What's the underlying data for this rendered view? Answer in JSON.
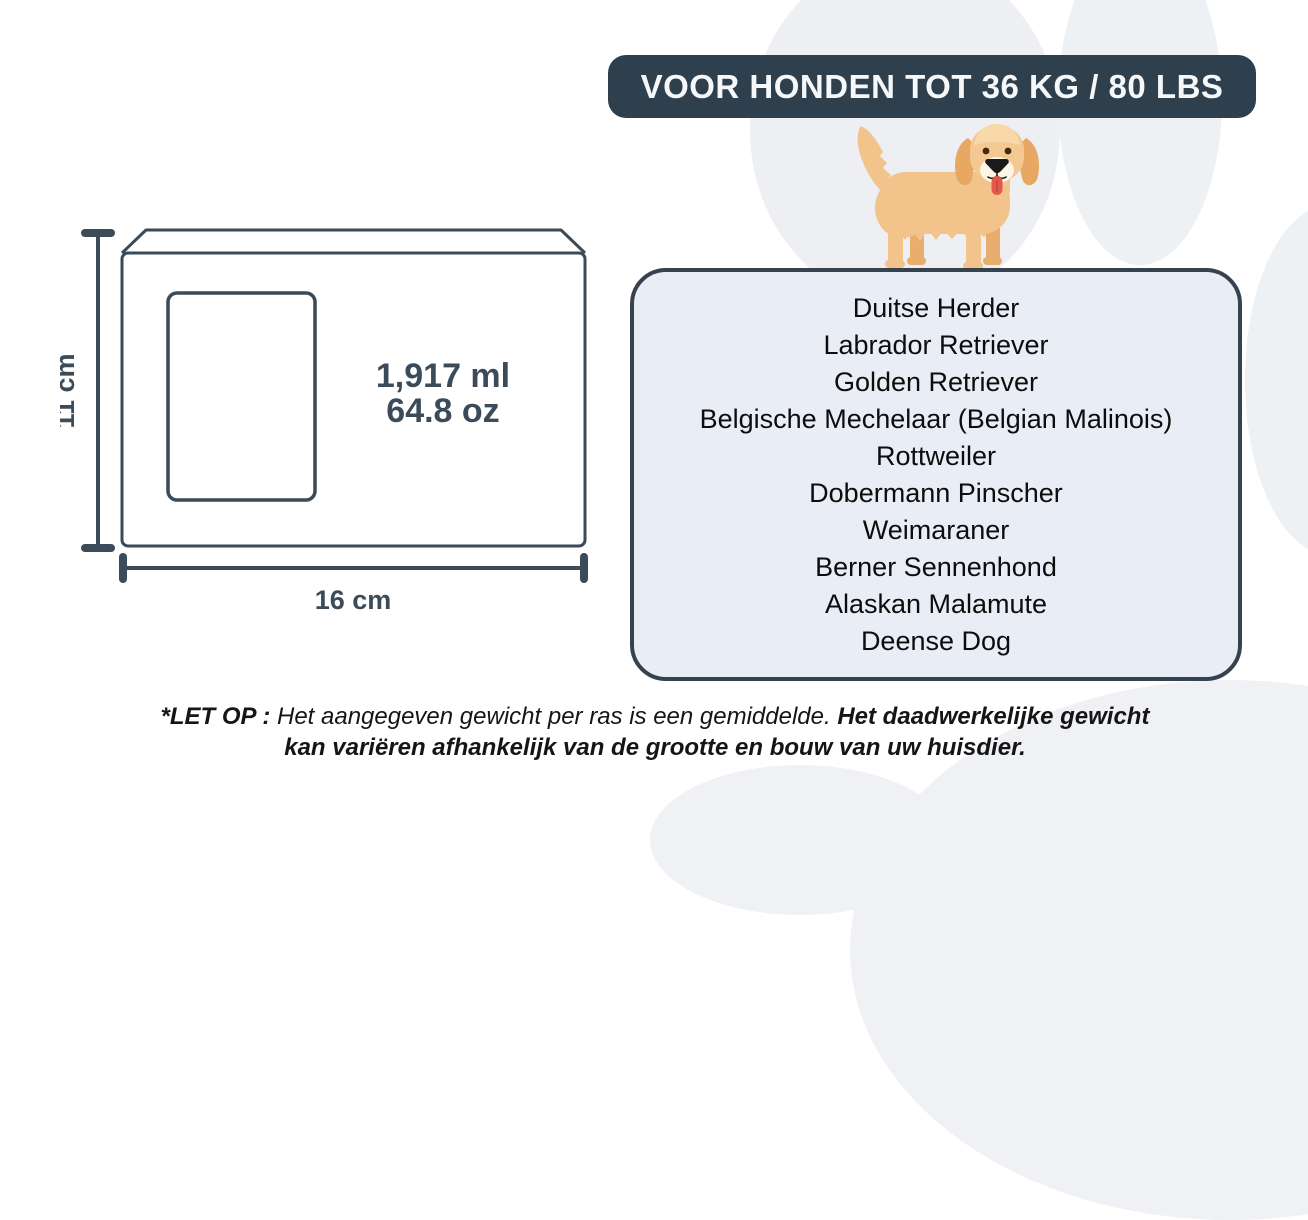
{
  "banner": {
    "label": "VOOR HONDEN TOT 36 KG / 80 LBS"
  },
  "diagram": {
    "volume_ml": "1,917 ml",
    "volume_oz": "64.8 oz",
    "height_label": "11 cm",
    "width_label": "16 cm"
  },
  "breeds": {
    "items": [
      "Duitse Herder",
      "Labrador Retriever",
      "Golden Retriever",
      "Belgische Mechelaar (Belgian Malinois)",
      "Rottweiler",
      "Dobermann Pinscher",
      "Weimaraner",
      "Berner Sennenhond",
      "Alaskan Malamute",
      "Deense Dog"
    ]
  },
  "note": {
    "prefix": "*LET OP : ",
    "normal": "Het aangegeven gewicht per ras is een gemiddelde. ",
    "bold": "Het daadwerkelijke gewicht kan variëren afhankelijk van de grootte en bouw van uw huisdier."
  },
  "icons": {
    "dog": "golden-retriever-illustration",
    "background": "paw-print-shapes"
  },
  "colors": {
    "banner_bg": "#2e3f4e",
    "banner_text": "#f5f7f8",
    "diagram_stroke": "#3a4a57",
    "dimension_text": "#3b4b59",
    "breed_panel_bg": "#e9edf5",
    "breed_panel_border": "#36434f",
    "paw_gray": "#edeff3",
    "dog_body": "#f2c48c",
    "dog_ear": "#e8a763",
    "dog_tongue": "#e4584c"
  }
}
